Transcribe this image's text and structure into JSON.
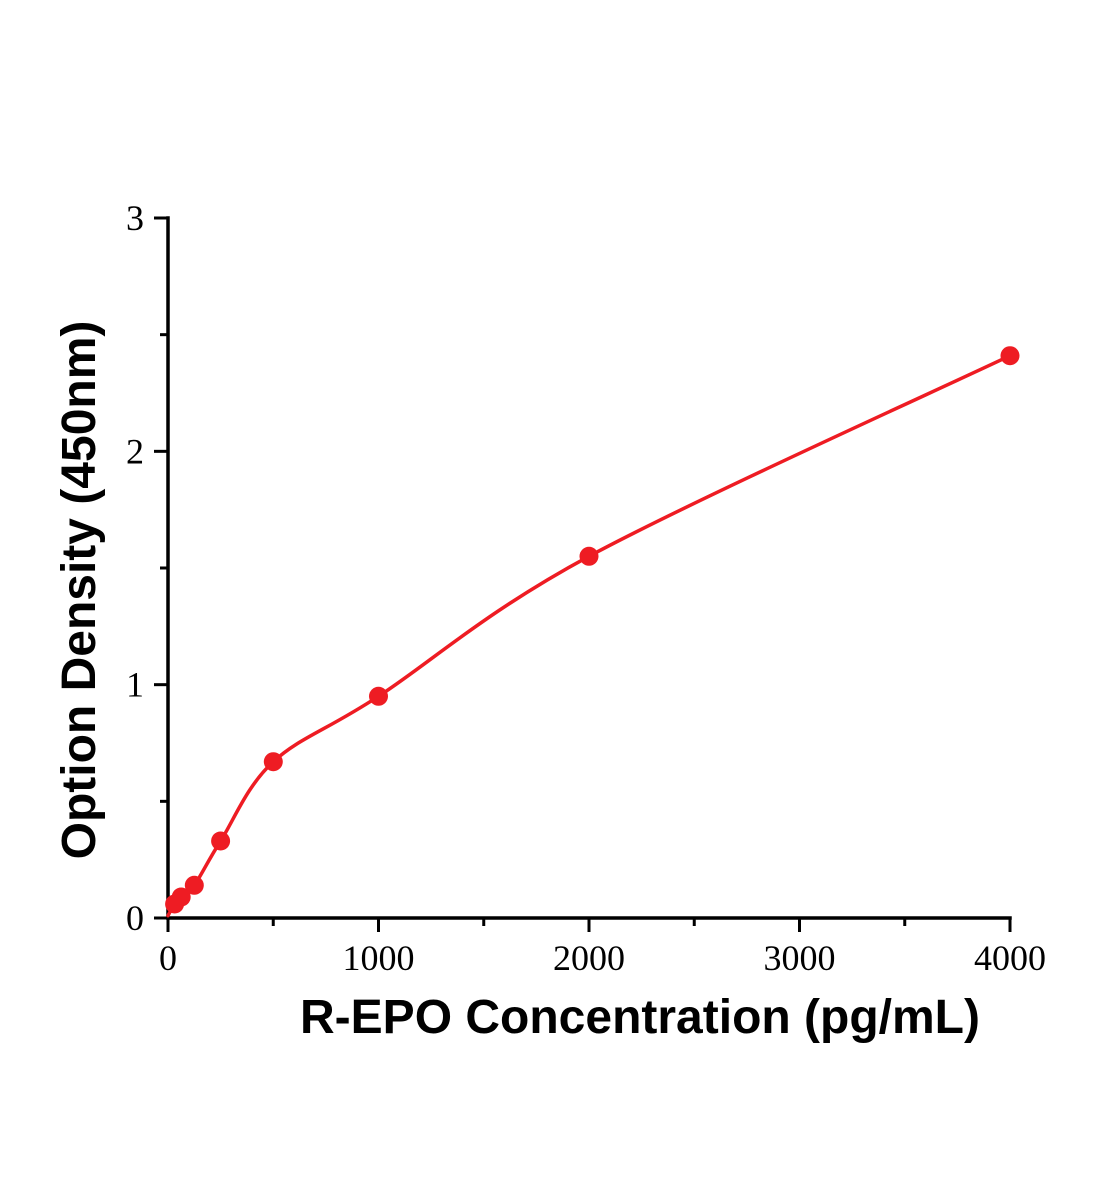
{
  "figure": {
    "background_color": "#ffffff"
  },
  "chart_data": {
    "type": "scatter",
    "title": "",
    "xlabel": "R-EPO Concentration (pg/mL)",
    "ylabel": "Option Density (450nm)",
    "x": [
      31.2,
      62.5,
      125,
      250,
      500,
      1000,
      2000,
      4000
    ],
    "y": [
      0.06,
      0.09,
      0.14,
      0.33,
      0.67,
      0.95,
      1.55,
      2.41
    ],
    "curve": "smooth",
    "curve_start": [
      0,
      0.01
    ],
    "xlim": [
      0,
      4000
    ],
    "ylim": [
      0,
      3
    ],
    "x_major_ticks": [
      0,
      1000,
      2000,
      3000,
      4000
    ],
    "x_minor_ticks": [
      500,
      1500,
      2500,
      3500
    ],
    "y_major_ticks": [
      0,
      1,
      2,
      3
    ],
    "y_minor_ticks": [
      0.5,
      1.5,
      2.5
    ],
    "grid": false,
    "legend": null,
    "line_color": "#ee1c23",
    "marker_color": "#ee1c23",
    "axis_color": "#000000"
  }
}
